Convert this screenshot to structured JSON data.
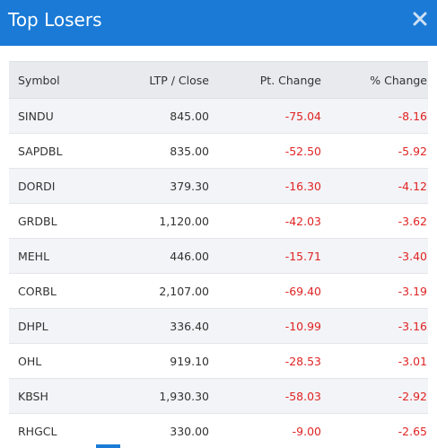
{
  "header": {
    "title": "Top Losers",
    "close_icon": "close-icon",
    "bg_color": "#1a7ad6"
  },
  "table": {
    "columns": [
      "Symbol",
      "LTP / Close",
      "Pt. Change",
      "% Change"
    ],
    "rows": [
      {
        "symbol": "SINDU",
        "ltp": "845.00",
        "pt_change": "-75.04",
        "pct_change": "-8.16"
      },
      {
        "symbol": "SAPDBL",
        "ltp": "835.00",
        "pt_change": "-52.50",
        "pct_change": "-5.92"
      },
      {
        "symbol": "DORDI",
        "ltp": "379.30",
        "pt_change": "-16.30",
        "pct_change": "-4.12"
      },
      {
        "symbol": "GRDBL",
        "ltp": "1,120.00",
        "pt_change": "-42.03",
        "pct_change": "-3.62"
      },
      {
        "symbol": "MEHL",
        "ltp": "446.00",
        "pt_change": "-15.71",
        "pct_change": "-3.40"
      },
      {
        "symbol": "CORBL",
        "ltp": "2,107.00",
        "pt_change": "-69.40",
        "pct_change": "-3.19"
      },
      {
        "symbol": "DHPL",
        "ltp": "336.40",
        "pt_change": "-10.99",
        "pct_change": "-3.16"
      },
      {
        "symbol": "OHL",
        "ltp": "919.10",
        "pt_change": "-28.53",
        "pct_change": "-3.01"
      },
      {
        "symbol": "KBSH",
        "ltp": "1,930.30",
        "pt_change": "-58.03",
        "pct_change": "-2.92"
      },
      {
        "symbol": "RHGCL",
        "ltp": "330.00",
        "pt_change": "-9.00",
        "pct_change": "-2.65"
      }
    ],
    "negative_color": "#e02424"
  }
}
